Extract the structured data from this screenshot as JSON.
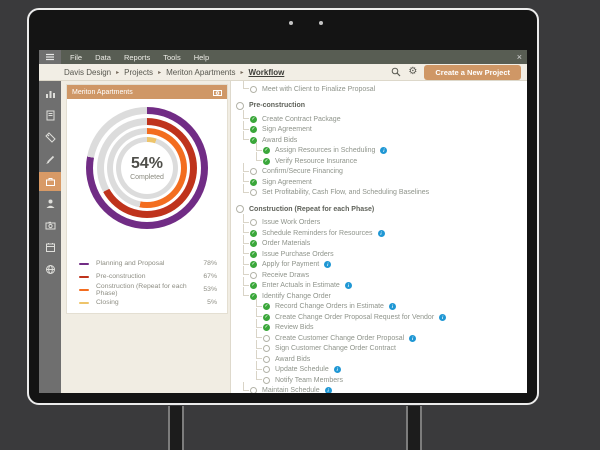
{
  "app": {
    "menu": [
      "File",
      "Data",
      "Reports",
      "Tools",
      "Help"
    ],
    "close": "×",
    "breadcrumb": [
      "Davis Design",
      "Projects",
      "Meriton Apartments",
      "Workflow"
    ],
    "separator": "▸",
    "create_button": "Create a New Project",
    "toolbar_icons": [
      "search",
      "gear"
    ]
  },
  "sidebar": {
    "icons": [
      "bar-chart",
      "notebook",
      "tag",
      "pencil",
      "briefcase",
      "person",
      "camera",
      "calendar",
      "globe"
    ],
    "active": "briefcase",
    "active_color": "#d89a66"
  },
  "project_panel": {
    "title": "Meriton Apartments",
    "header_icon": "camera",
    "header_color": "#cf9766"
  },
  "chart_data": {
    "type": "donut-multi-ring",
    "title": "Meriton Apartments completion",
    "center_text": "54%",
    "center_label": "Completed",
    "track_color": "#dcdcdc",
    "rings": [
      {
        "name": "Planning and Proposal",
        "value": 78,
        "pct": "78%",
        "color": "#712c85"
      },
      {
        "name": "Pre-construction",
        "value": 67,
        "pct": "67%",
        "color": "#bf331c"
      },
      {
        "name": "Construction (Repeat for each Phase)",
        "value": 53,
        "pct": "53%",
        "color": "#f36d1f"
      },
      {
        "name": "Closing",
        "value": 5,
        "pct": "5%",
        "color": "#eec46a"
      }
    ],
    "legend_position": "below"
  },
  "checklist": {
    "items": [
      {
        "label": "Meet with Client to Finalize Proposal",
        "level": 1,
        "state": "open"
      },
      {
        "label": "Pre-construction",
        "level": 0,
        "state": "open",
        "header": true
      },
      {
        "label": "Create Contract Package",
        "level": 1,
        "state": "done"
      },
      {
        "label": "Sign Agreement",
        "level": 1,
        "state": "done"
      },
      {
        "label": "Award Bids",
        "level": 1,
        "state": "done"
      },
      {
        "label": "Assign Resources in Scheduling",
        "level": 2,
        "state": "done",
        "info": true
      },
      {
        "label": "Verify Resource Insurance",
        "level": 2,
        "state": "done"
      },
      {
        "label": "Confirm/Secure Financing",
        "level": 1,
        "state": "open"
      },
      {
        "label": "Sign Agreement",
        "level": 1,
        "state": "done"
      },
      {
        "label": "Set Profitability, Cash Flow, and Scheduling Baselines",
        "level": 1,
        "state": "open"
      },
      {
        "label": "Construction (Repeat for each Phase)",
        "level": 0,
        "state": "open",
        "header": true
      },
      {
        "label": "Issue Work Orders",
        "level": 1,
        "state": "open"
      },
      {
        "label": "Schedule Reminders for Resources",
        "level": 1,
        "state": "done",
        "info": true
      },
      {
        "label": "Order Materials",
        "level": 1,
        "state": "done"
      },
      {
        "label": "Issue Purchase Orders",
        "level": 1,
        "state": "done"
      },
      {
        "label": "Apply for Payment",
        "level": 1,
        "state": "done",
        "info": true
      },
      {
        "label": "Receive Draws",
        "level": 1,
        "state": "open"
      },
      {
        "label": "Enter Actuals in Estimate",
        "level": 1,
        "state": "done",
        "info": true
      },
      {
        "label": "Identify Change Order",
        "level": 1,
        "state": "done"
      },
      {
        "label": "Record Change Orders in Estimate",
        "level": 2,
        "state": "done",
        "info": true
      },
      {
        "label": "Create Change Order Proposal Request for Vendor",
        "level": 2,
        "state": "done",
        "info": true
      },
      {
        "label": "Review Bids",
        "level": 2,
        "state": "done"
      },
      {
        "label": "Create Customer Change Order Proposal",
        "level": 2,
        "state": "open",
        "info": true
      },
      {
        "label": "Sign Customer Change Order Contract",
        "level": 2,
        "state": "open"
      },
      {
        "label": "Award Bids",
        "level": 2,
        "state": "open"
      },
      {
        "label": "Update Schedule",
        "level": 2,
        "state": "open",
        "info": true
      },
      {
        "label": "Notify Team Members",
        "level": 2,
        "state": "open"
      },
      {
        "label": "Maintain Schedule",
        "level": 1,
        "state": "open",
        "info": true
      }
    ]
  }
}
